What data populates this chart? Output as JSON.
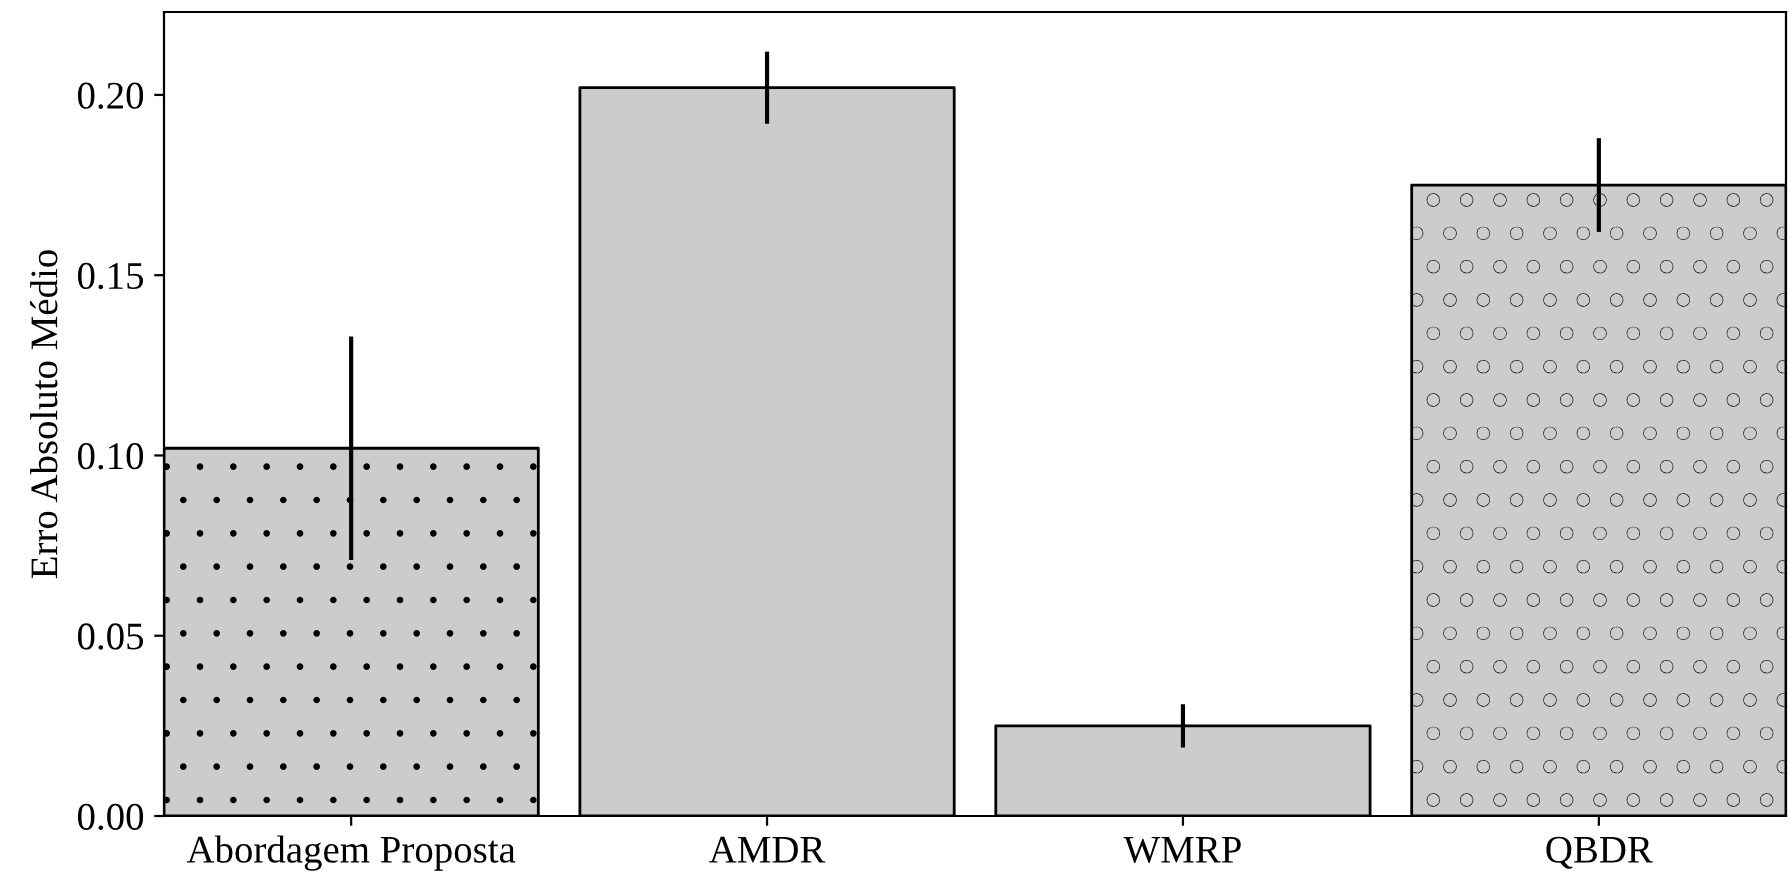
{
  "chart_data": {
    "type": "bar",
    "ylabel": "Erro Absoluto Médio",
    "categories": [
      "Abordagem Proposta",
      "AMDR",
      "WMRP",
      "QBDR"
    ],
    "values": [
      0.102,
      0.202,
      0.025,
      0.175
    ],
    "errors": [
      0.031,
      0.01,
      0.006,
      0.013
    ],
    "color": "#cccccc",
    "ylim": [
      0,
      0.223
    ],
    "yticks": [
      {
        "value": 0,
        "label": "0.00"
      },
      {
        "value": 0.05,
        "label": "0.05"
      },
      {
        "value": 0.1,
        "label": "0.10"
      },
      {
        "value": 0.15,
        "label": "0.15"
      },
      {
        "value": 0.2,
        "label": "0.20"
      }
    ],
    "grid": false
  }
}
